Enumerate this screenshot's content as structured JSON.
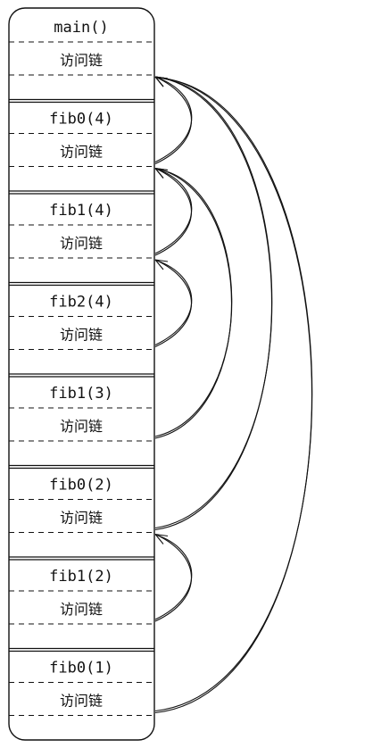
{
  "stack": {
    "frames": [
      {
        "name": "main()",
        "link_label": "访问链",
        "link_to": null
      },
      {
        "name": "fib0(4)",
        "link_label": "访问链",
        "link_to": 0
      },
      {
        "name": "fib1(4)",
        "link_label": "访问链",
        "link_to": 1
      },
      {
        "name": "fib2(4)",
        "link_label": "访问链",
        "link_to": 2
      },
      {
        "name": "fib1(3)",
        "link_label": "访问链",
        "link_to": 1
      },
      {
        "name": "fib0(2)",
        "link_label": "访问链",
        "link_to": 0
      },
      {
        "name": "fib1(2)",
        "link_label": "访问链",
        "link_to": 5
      },
      {
        "name": "fib0(1)",
        "link_label": "访问链",
        "link_to": 0
      }
    ]
  }
}
